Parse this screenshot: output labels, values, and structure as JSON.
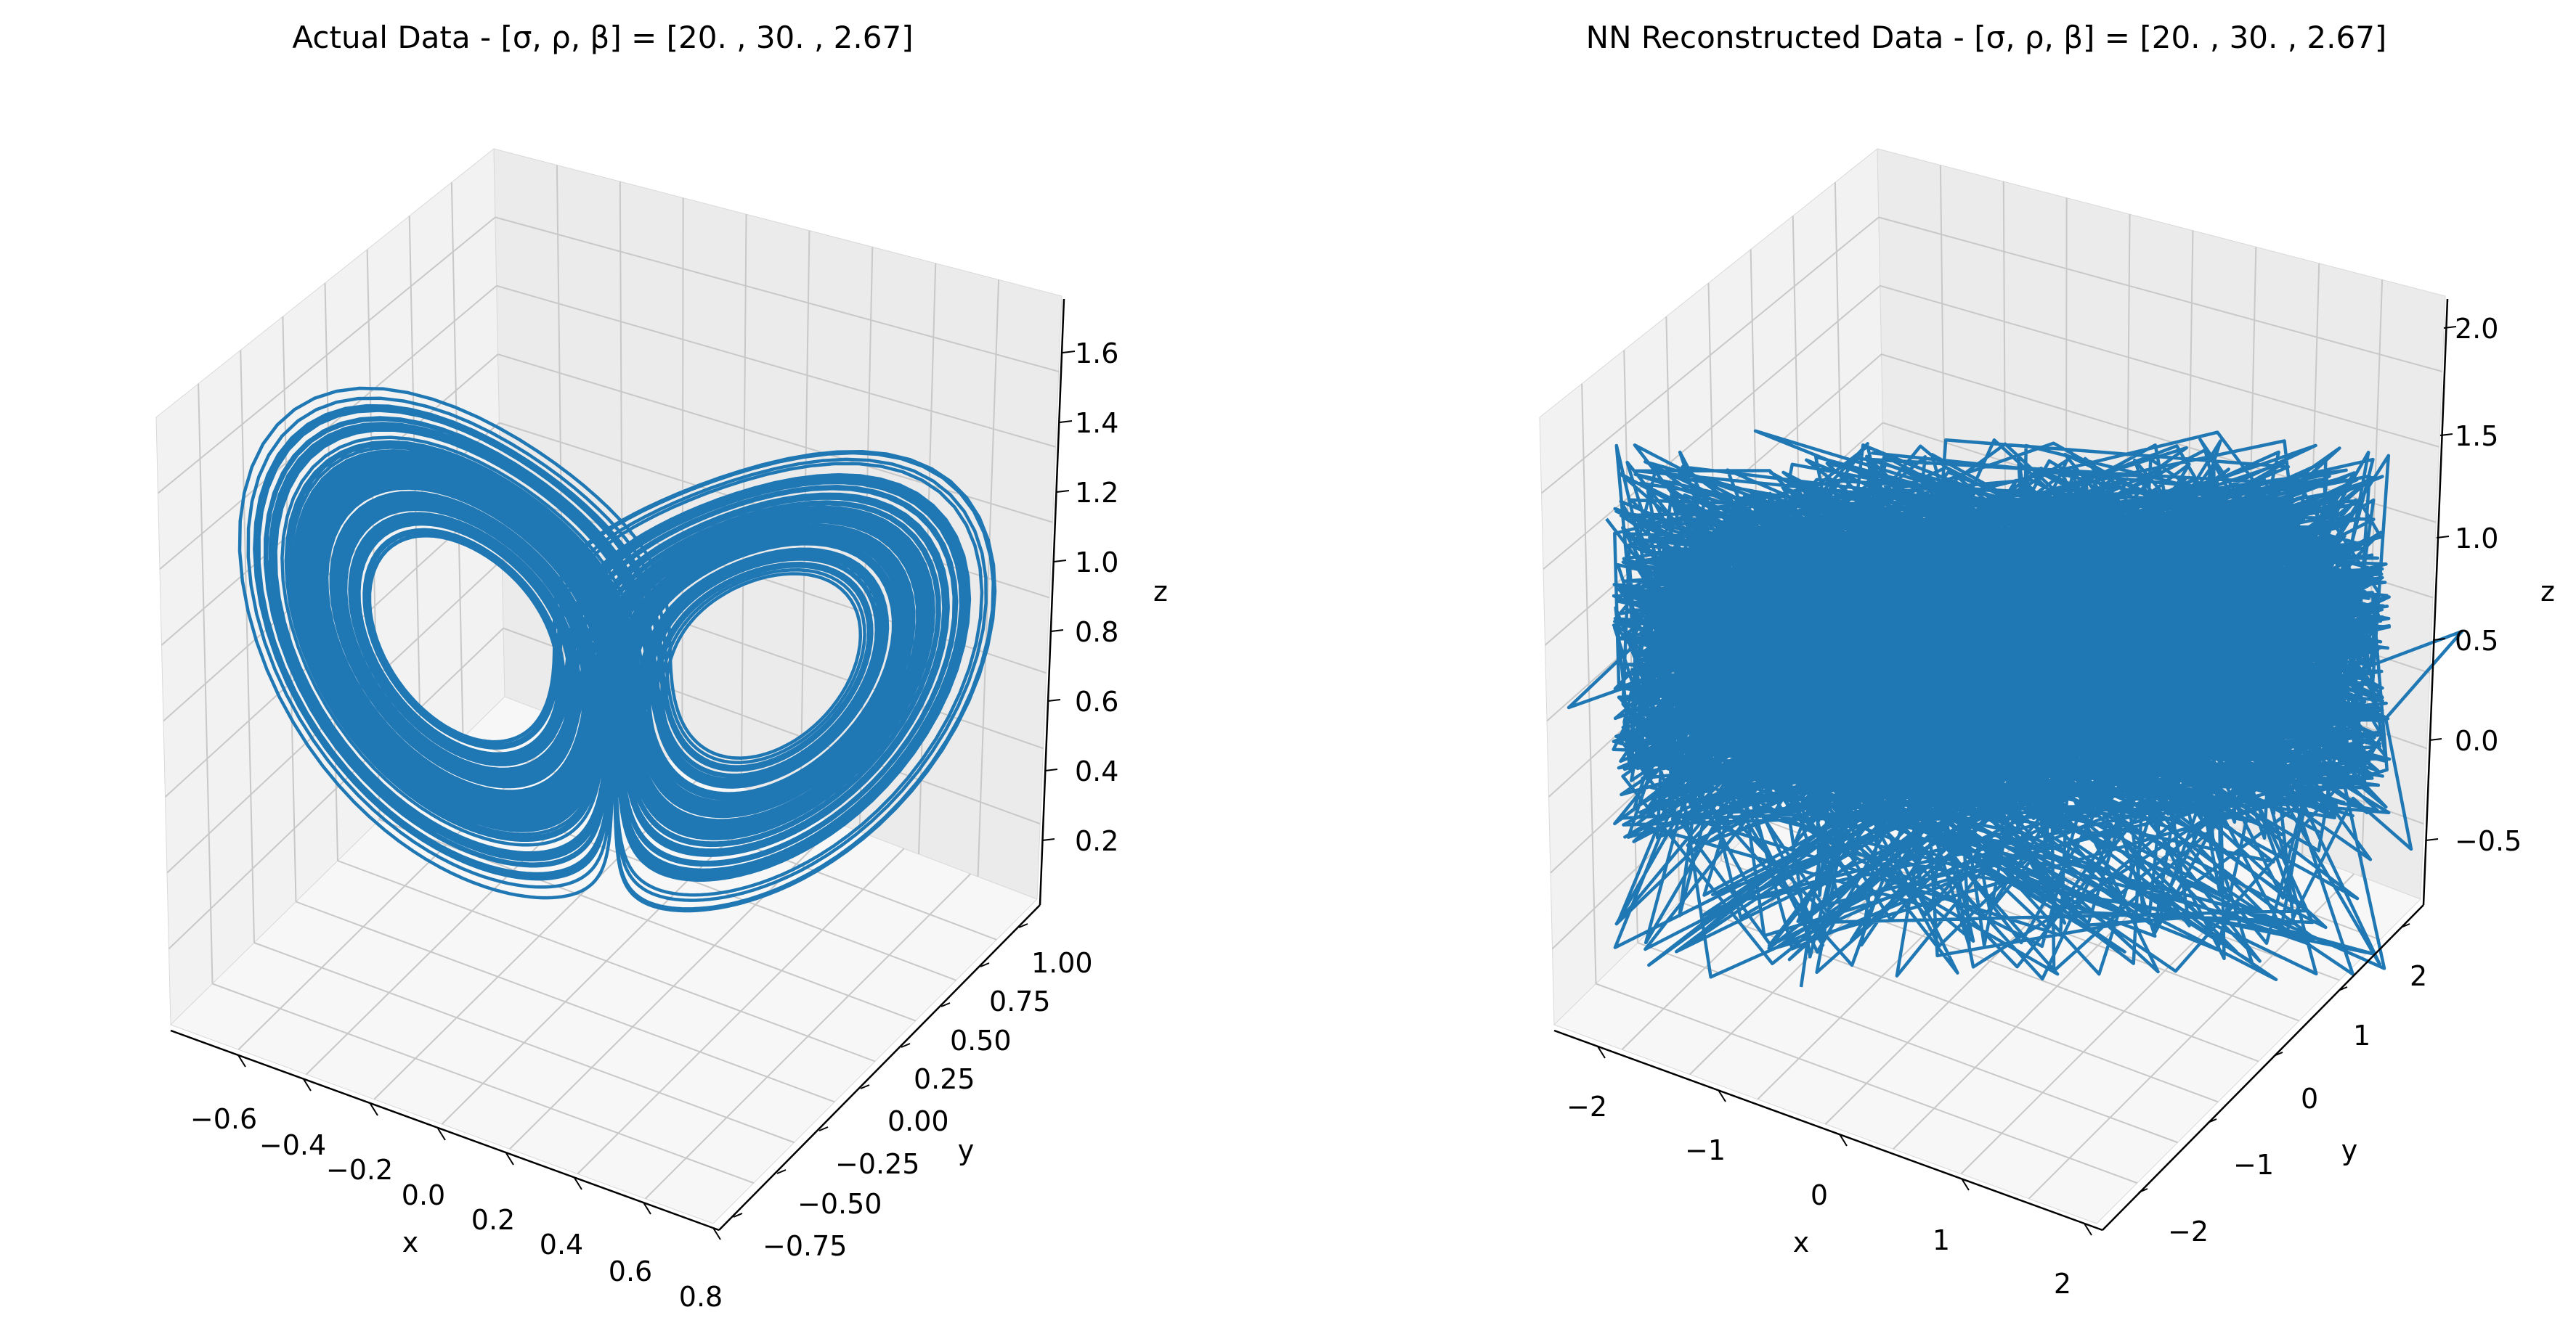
{
  "figure": {
    "background": "#ffffff",
    "pane_colors": [
      "#f2f2f2",
      "#ebebeb",
      "#f7f7f7"
    ],
    "grid_color": "#c8c8c8",
    "line_color": "#1f77b4"
  },
  "chart_data": [
    {
      "type": "line",
      "projection": "3d",
      "title": "Actual Data - [σ, ρ, β] = [20.  , 30.  ,  2.67]",
      "xlabel": "x",
      "ylabel": "y",
      "zlabel": "z",
      "xticks": [
        "−0.6",
        "−0.4",
        "−0.2",
        "0.0",
        "0.2",
        "0.4",
        "0.6",
        "0.8"
      ],
      "yticks": [
        "−0.75",
        "−0.50",
        "−0.25",
        "0.00",
        "0.25",
        "0.50",
        "0.75",
        "1.00"
      ],
      "zticks": [
        "0.2",
        "0.4",
        "0.6",
        "0.8",
        "1.0",
        "1.2",
        "1.4",
        "1.6"
      ],
      "xlim": [
        -0.72,
        0.82
      ],
      "ylim": [
        -0.82,
        1.05
      ],
      "zlim": [
        0.05,
        1.68
      ],
      "grid": true,
      "series": [
        {
          "description": "Lorenz attractor trajectory (two-lobed butterfly)",
          "color": "#1f77b4",
          "generator": "lorenz",
          "params": {
            "sigma": 20,
            "rho": 30,
            "beta": 2.67
          }
        }
      ]
    },
    {
      "type": "line",
      "projection": "3d",
      "title": "NN Reconstructed Data - [σ, ρ, β] = [20.  , 30.  ,  2.67]",
      "xlabel": "x",
      "ylabel": "y",
      "zlabel": "z",
      "xticks": [
        "−2",
        "−1",
        "0",
        "1",
        "2"
      ],
      "yticks": [
        "−2",
        "−1",
        "0",
        "1",
        "2"
      ],
      "zticks": [
        "−0.5",
        "0.0",
        "0.5",
        "1.0",
        "1.5",
        "2.0"
      ],
      "xlim": [
        -2.4,
        2.4
      ],
      "ylim": [
        -2.4,
        2.4
      ],
      "zlim": [
        -0.8,
        2.1
      ],
      "grid": true,
      "series": [
        {
          "description": "Noisy neural-network reconstruction (dense jagged block)",
          "color": "#1f77b4",
          "generator": "noise",
          "params": {
            "sigma": 20,
            "rho": 30,
            "beta": 2.67
          }
        }
      ]
    }
  ]
}
